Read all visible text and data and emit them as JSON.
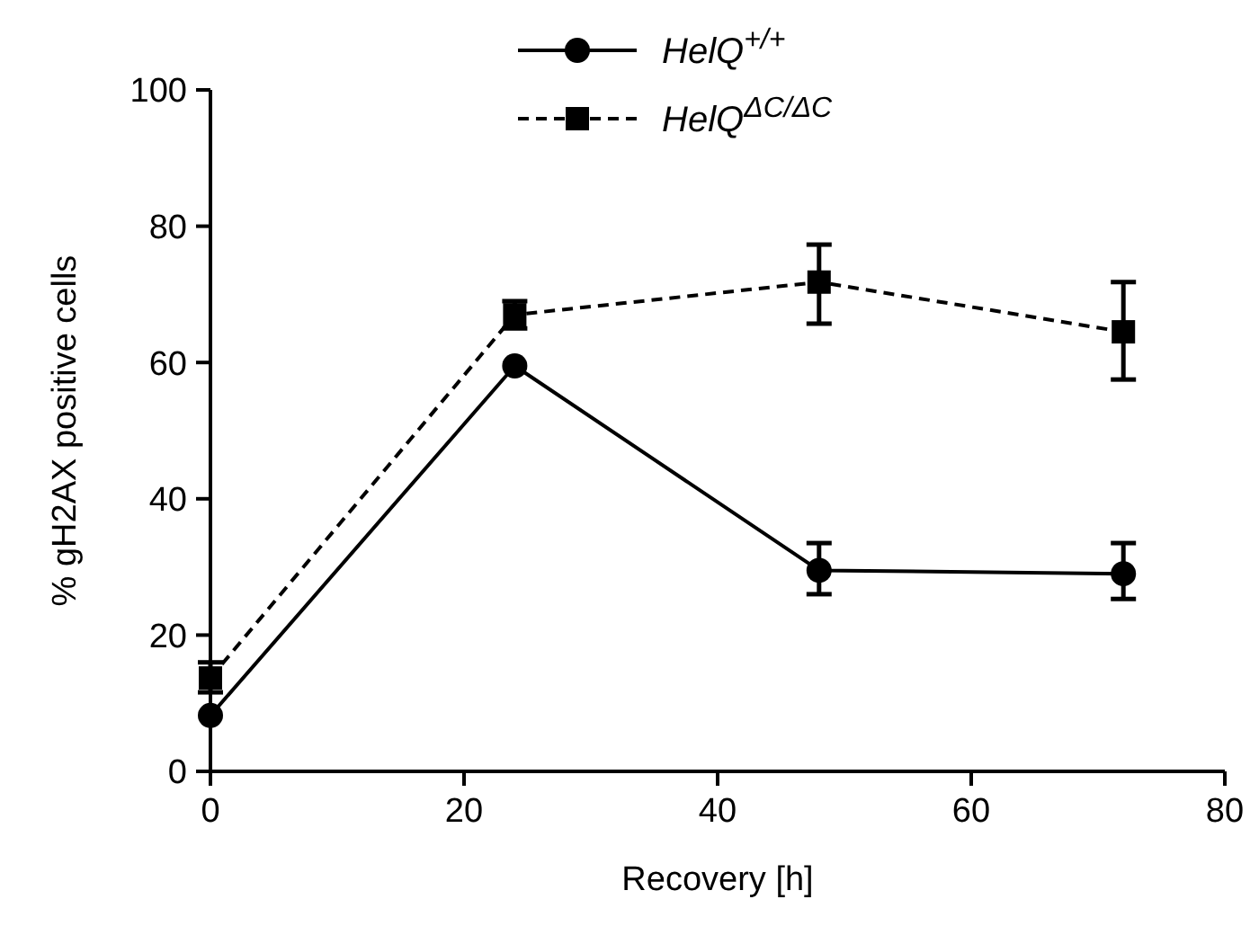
{
  "chart_data": {
    "type": "line",
    "xlabel": "Recovery [h]",
    "ylabel": "% gH2AX positive cells",
    "x": [
      0,
      24,
      48,
      72
    ],
    "series": [
      {
        "name": "HelQ$^{+/+}$",
        "color": "#000000",
        "values": [
          8.2,
          59.5,
          29.5,
          29
        ],
        "errors": [
          null,
          null,
          [
            26,
            33.5
          ],
          [
            25.3,
            33.5
          ]
        ],
        "marker": "circle",
        "line_style": "solid"
      },
      {
        "name": "HelQ$^{ΔC/ΔC}$",
        "color": "#000000",
        "values": [
          13.7,
          67,
          71.8,
          64.5
        ],
        "errors": [
          [
            11.6,
            16
          ],
          [
            65,
            69
          ],
          [
            65.7,
            77.3
          ],
          [
            57.5,
            71.8
          ]
        ],
        "marker": "square",
        "line_style": "dashed"
      }
    ],
    "xlim": [
      0,
      80
    ],
    "xticks": [
      0,
      20,
      40,
      60,
      80
    ],
    "ylim": [
      0,
      100
    ],
    "yticks": [
      0,
      20,
      40,
      60,
      80,
      100
    ],
    "grid": false,
    "legend": "top"
  }
}
